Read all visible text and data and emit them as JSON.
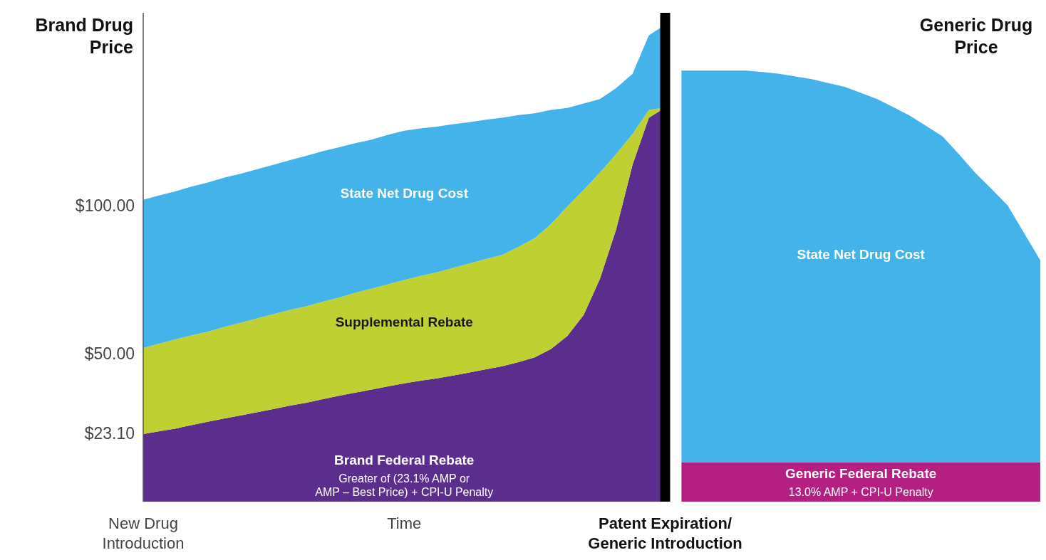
{
  "chart_data": {
    "type": "area",
    "stacked": true,
    "ylabel": "Brand Drug Price",
    "y2label": "Generic Drug Price",
    "categories": [
      "New Drug\nIntroduction",
      null,
      null,
      null,
      null,
      null,
      null,
      null,
      null,
      null,
      null,
      null,
      null,
      null,
      null,
      null,
      "Time",
      null,
      null,
      null,
      null,
      null,
      null,
      null,
      null,
      null,
      null,
      null,
      null,
      null,
      null,
      null,
      "Patent Expiration/\nGeneric Introduction",
      null,
      null,
      null,
      null,
      null,
      null,
      null,
      null,
      null,
      null,
      null,
      null,
      null,
      null,
      null,
      null,
      null,
      null,
      null,
      null,
      null,
      null,
      null
    ],
    "ylim": [
      0,
      165
    ],
    "yticks": [
      {
        "value": 23.1,
        "label": "$23.10"
      },
      {
        "value": 50,
        "label": "$50.00"
      },
      {
        "value": 100,
        "label": "$100.00"
      }
    ],
    "series": [
      {
        "name": "Brand Federal Rebate",
        "color": "#5b2e8e",
        "values": [
          22.8,
          23.8,
          24.7,
          25.9,
          27,
          28.1,
          29.1,
          30.2,
          31.3,
          32.4,
          33.4,
          34.6,
          35.7,
          36.8,
          37.8,
          38.9,
          39.9,
          40.8,
          41.6,
          42.6,
          43.6,
          44.7,
          45.7,
          47.1,
          48.7,
          51.5,
          55.9,
          63,
          75.2,
          92,
          113.7,
          129.6,
          133,
          null,
          null,
          null,
          null,
          null,
          null,
          null,
          null,
          null,
          null,
          null,
          null,
          null,
          null,
          null,
          null,
          null,
          null,
          null,
          null,
          null,
          null,
          null
        ]
      },
      {
        "name": "Supplemental Rebate",
        "color": "#bfd032",
        "values": [
          29.1,
          29.6,
          30.1,
          30.3,
          30.4,
          30.9,
          31.3,
          31.7,
          32,
          32.3,
          32.5,
          32.9,
          33.2,
          33.7,
          34.1,
          34.5,
          34.9,
          35.4,
          35.8,
          36.3,
          36.8,
          37.2,
          37.6,
          38.9,
          40.2,
          42.2,
          43.7,
          42.2,
          35.9,
          25.4,
          10.4,
          2.6,
          0,
          null,
          null,
          null,
          null,
          null,
          null,
          null,
          null,
          null,
          null,
          null,
          null,
          null,
          null,
          null,
          null,
          null,
          null,
          null,
          null,
          null,
          null,
          null
        ]
      },
      {
        "name": "State Net Drug Cost",
        "color": "#43b3ea",
        "values": [
          50,
          50,
          50,
          50.2,
          50.4,
          50.4,
          50.3,
          50.3,
          50.4,
          50.6,
          50.8,
          50.8,
          50.7,
          50.5,
          50.3,
          50.4,
          50.4,
          49.8,
          49.2,
          48.5,
          47.7,
          47,
          46.3,
          44.5,
          42.2,
          38.5,
          33.3,
          29.2,
          24.8,
          22.2,
          20.3,
          25.2,
          28,
          null,
          null,
          null,
          null,
          null,
          null,
          null,
          null,
          null,
          null,
          null,
          null,
          null,
          null,
          null,
          null,
          null,
          null,
          null,
          null,
          null,
          null,
          null
        ]
      },
      {
        "name": "Generic Federal Rebate",
        "color": "#b51f82",
        "values": [
          null,
          null,
          null,
          null,
          null,
          null,
          null,
          null,
          null,
          null,
          null,
          null,
          null,
          null,
          null,
          null,
          null,
          null,
          null,
          null,
          null,
          null,
          null,
          null,
          null,
          null,
          null,
          null,
          null,
          null,
          null,
          null,
          null,
          13.3,
          13.3,
          13.3,
          13.3,
          13.3,
          13.3,
          13.3,
          13.3,
          13.3,
          13.3,
          13.3,
          13.3,
          13.3,
          13.3,
          13.3,
          13.3,
          13.3,
          13.3,
          13.3,
          13.3,
          13.3,
          13.3,
          13.3
        ]
      },
      {
        "name": "State Net Drug Cost",
        "color": "#43b3ea",
        "values": [
          null,
          null,
          null,
          null,
          null,
          null,
          null,
          null,
          null,
          null,
          null,
          null,
          null,
          null,
          null,
          null,
          null,
          null,
          null,
          null,
          null,
          null,
          null,
          null,
          null,
          null,
          null,
          null,
          null,
          null,
          null,
          null,
          null,
          132.2,
          132.2,
          132.2,
          132.2,
          132.2,
          131.7,
          131.1,
          130.2,
          129.3,
          128,
          126.7,
          124.7,
          122.6,
          119.8,
          117,
          113.5,
          110,
          104,
          97.8,
          92.3,
          86.7,
          77.4,
          68.2
        ]
      }
    ],
    "ref_lines": [
      {
        "axis": "x",
        "value": "Patent Expiration/\nGeneric Introduction",
        "color": "#000000"
      }
    ],
    "annotations": [
      "Greater of (23.1% AMP or\nAMP – Best Price) + CPI-U Penalty",
      "13.0% AMP + CPI-U Penalty"
    ]
  }
}
